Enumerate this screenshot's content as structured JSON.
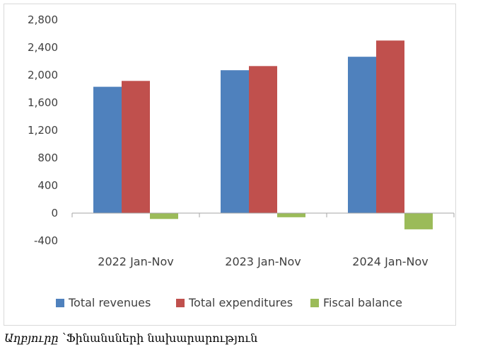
{
  "source": {
    "label": "Աղբյուրը",
    "text": "՝Ֆինանսների նախարարություն"
  },
  "chart_data": {
    "type": "bar",
    "categories": [
      "2022 Jan-Nov",
      "2023 Jan-Nov",
      "2024 Jan-Nov"
    ],
    "series": [
      {
        "name": "Total revenues",
        "color": "#4f81bd",
        "values": [
          1830,
          2070,
          2265
        ]
      },
      {
        "name": "Total expenditures",
        "color": "#c0504d",
        "values": [
          1915,
          2130,
          2500
        ]
      },
      {
        "name": "Fiscal balance",
        "color": "#9bbb59",
        "values": [
          -85,
          -60,
          -235
        ]
      }
    ],
    "ylim": [
      -400,
      2800
    ],
    "yticks": [
      -400,
      0,
      400,
      800,
      1200,
      1600,
      2000,
      2400,
      2800
    ],
    "ytick_labels": [
      "-400",
      "0",
      "400",
      "800",
      "1,200",
      "1,600",
      "2,000",
      "2,400",
      "2,800"
    ],
    "grid": false,
    "legend_position": "bottom"
  }
}
